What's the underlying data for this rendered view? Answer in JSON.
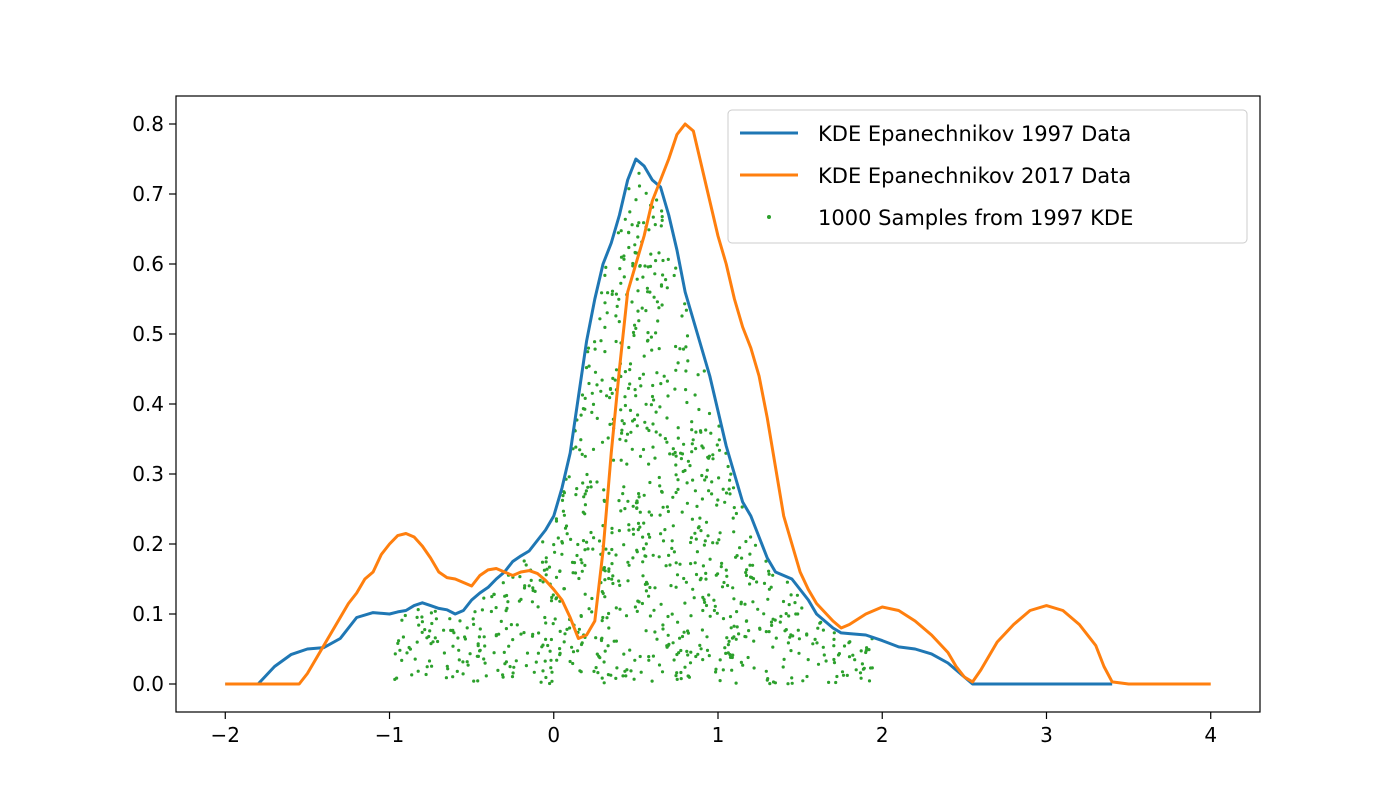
{
  "chart_data": {
    "type": "line",
    "title": "",
    "xlabel": "",
    "ylabel": "",
    "xlim": [
      -2.3,
      4.3
    ],
    "ylim": [
      -0.04,
      0.84
    ],
    "xticks": [
      -2,
      -1,
      0,
      1,
      2,
      3,
      4
    ],
    "xtick_labels": [
      "−2",
      "−1",
      "0",
      "1",
      "2",
      "3",
      "4"
    ],
    "yticks": [
      0.0,
      0.1,
      0.2,
      0.3,
      0.4,
      0.5,
      0.6,
      0.7,
      0.8
    ],
    "ytick_labels": [
      "0.0",
      "0.1",
      "0.2",
      "0.3",
      "0.4",
      "0.5",
      "0.6",
      "0.7",
      "0.8"
    ],
    "grid": false,
    "legend_position": "top-right",
    "series": [
      {
        "name": "KDE Epanechnikov 1997 Data",
        "kind": "line",
        "color": "#1f77b4",
        "x": [
          -2.0,
          -1.9,
          -1.8,
          -1.7,
          -1.6,
          -1.5,
          -1.4,
          -1.3,
          -1.25,
          -1.2,
          -1.1,
          -1.0,
          -0.95,
          -0.9,
          -0.85,
          -0.8,
          -0.75,
          -0.7,
          -0.65,
          -0.6,
          -0.55,
          -0.5,
          -0.45,
          -0.4,
          -0.35,
          -0.3,
          -0.25,
          -0.2,
          -0.15,
          -0.1,
          -0.05,
          0.0,
          0.05,
          0.1,
          0.15,
          0.2,
          0.25,
          0.3,
          0.35,
          0.4,
          0.45,
          0.5,
          0.55,
          0.6,
          0.65,
          0.7,
          0.75,
          0.8,
          0.85,
          0.9,
          0.95,
          1.0,
          1.05,
          1.1,
          1.15,
          1.2,
          1.25,
          1.3,
          1.35,
          1.4,
          1.45,
          1.5,
          1.55,
          1.6,
          1.65,
          1.7,
          1.75,
          1.8,
          1.9,
          2.0,
          2.1,
          2.2,
          2.3,
          2.4,
          2.5,
          2.55,
          2.7,
          3.0,
          3.4
        ],
        "y": [
          0.0,
          0.0,
          0.0,
          0.025,
          0.042,
          0.05,
          0.052,
          0.065,
          0.08,
          0.095,
          0.102,
          0.1,
          0.103,
          0.105,
          0.112,
          0.116,
          0.112,
          0.108,
          0.106,
          0.1,
          0.105,
          0.12,
          0.13,
          0.138,
          0.15,
          0.16,
          0.175,
          0.183,
          0.19,
          0.205,
          0.22,
          0.24,
          0.28,
          0.33,
          0.41,
          0.49,
          0.55,
          0.6,
          0.63,
          0.67,
          0.72,
          0.75,
          0.74,
          0.72,
          0.71,
          0.67,
          0.62,
          0.56,
          0.52,
          0.48,
          0.44,
          0.39,
          0.34,
          0.3,
          0.26,
          0.24,
          0.21,
          0.18,
          0.16,
          0.155,
          0.15,
          0.135,
          0.12,
          0.1,
          0.09,
          0.08,
          0.073,
          0.072,
          0.07,
          0.062,
          0.053,
          0.05,
          0.043,
          0.03,
          0.01,
          0.0,
          0.0,
          0.0,
          0.0
        ]
      },
      {
        "name": "KDE Epanechnikov 2017 Data",
        "kind": "line",
        "color": "#ff7f0e",
        "x": [
          -2.0,
          -1.9,
          -1.8,
          -1.7,
          -1.6,
          -1.55,
          -1.5,
          -1.45,
          -1.4,
          -1.35,
          -1.3,
          -1.25,
          -1.2,
          -1.15,
          -1.1,
          -1.05,
          -1.0,
          -0.95,
          -0.9,
          -0.85,
          -0.8,
          -0.75,
          -0.7,
          -0.65,
          -0.6,
          -0.55,
          -0.5,
          -0.45,
          -0.4,
          -0.35,
          -0.3,
          -0.25,
          -0.2,
          -0.15,
          -0.1,
          -0.05,
          0.0,
          0.05,
          0.1,
          0.15,
          0.2,
          0.25,
          0.3,
          0.35,
          0.4,
          0.45,
          0.5,
          0.55,
          0.6,
          0.65,
          0.7,
          0.75,
          0.8,
          0.85,
          0.9,
          0.95,
          1.0,
          1.05,
          1.1,
          1.15,
          1.2,
          1.25,
          1.3,
          1.35,
          1.4,
          1.45,
          1.5,
          1.55,
          1.6,
          1.7,
          1.75,
          1.8,
          1.9,
          2.0,
          2.1,
          2.2,
          2.3,
          2.4,
          2.45,
          2.5,
          2.55,
          2.6,
          2.7,
          2.8,
          2.9,
          3.0,
          3.1,
          3.2,
          3.3,
          3.35,
          3.4,
          3.5,
          3.6,
          3.8,
          4.0
        ],
        "y": [
          0.0,
          0.0,
          0.0,
          0.0,
          0.0,
          0.0,
          0.015,
          0.035,
          0.055,
          0.075,
          0.095,
          0.115,
          0.13,
          0.15,
          0.16,
          0.185,
          0.2,
          0.212,
          0.215,
          0.21,
          0.197,
          0.18,
          0.16,
          0.152,
          0.15,
          0.145,
          0.14,
          0.155,
          0.163,
          0.165,
          0.16,
          0.155,
          0.16,
          0.162,
          0.158,
          0.148,
          0.135,
          0.12,
          0.095,
          0.065,
          0.07,
          0.09,
          0.19,
          0.33,
          0.45,
          0.56,
          0.6,
          0.64,
          0.69,
          0.72,
          0.75,
          0.785,
          0.8,
          0.79,
          0.74,
          0.69,
          0.64,
          0.6,
          0.55,
          0.51,
          0.48,
          0.44,
          0.38,
          0.31,
          0.24,
          0.2,
          0.16,
          0.135,
          0.115,
          0.09,
          0.08,
          0.085,
          0.1,
          0.11,
          0.105,
          0.09,
          0.07,
          0.045,
          0.025,
          0.01,
          0.003,
          0.02,
          0.06,
          0.085,
          0.105,
          0.112,
          0.105,
          0.085,
          0.055,
          0.025,
          0.003,
          0.0,
          0.0,
          0.0,
          0.0
        ]
      },
      {
        "name": "1000 Samples from 1997 KDE",
        "kind": "scatter",
        "color": "#2ca02c",
        "n": 1000,
        "x_range": [
          -0.97,
          1.95
        ],
        "envelope": "KDE Epanechnikov 1997 Data"
      }
    ]
  }
}
